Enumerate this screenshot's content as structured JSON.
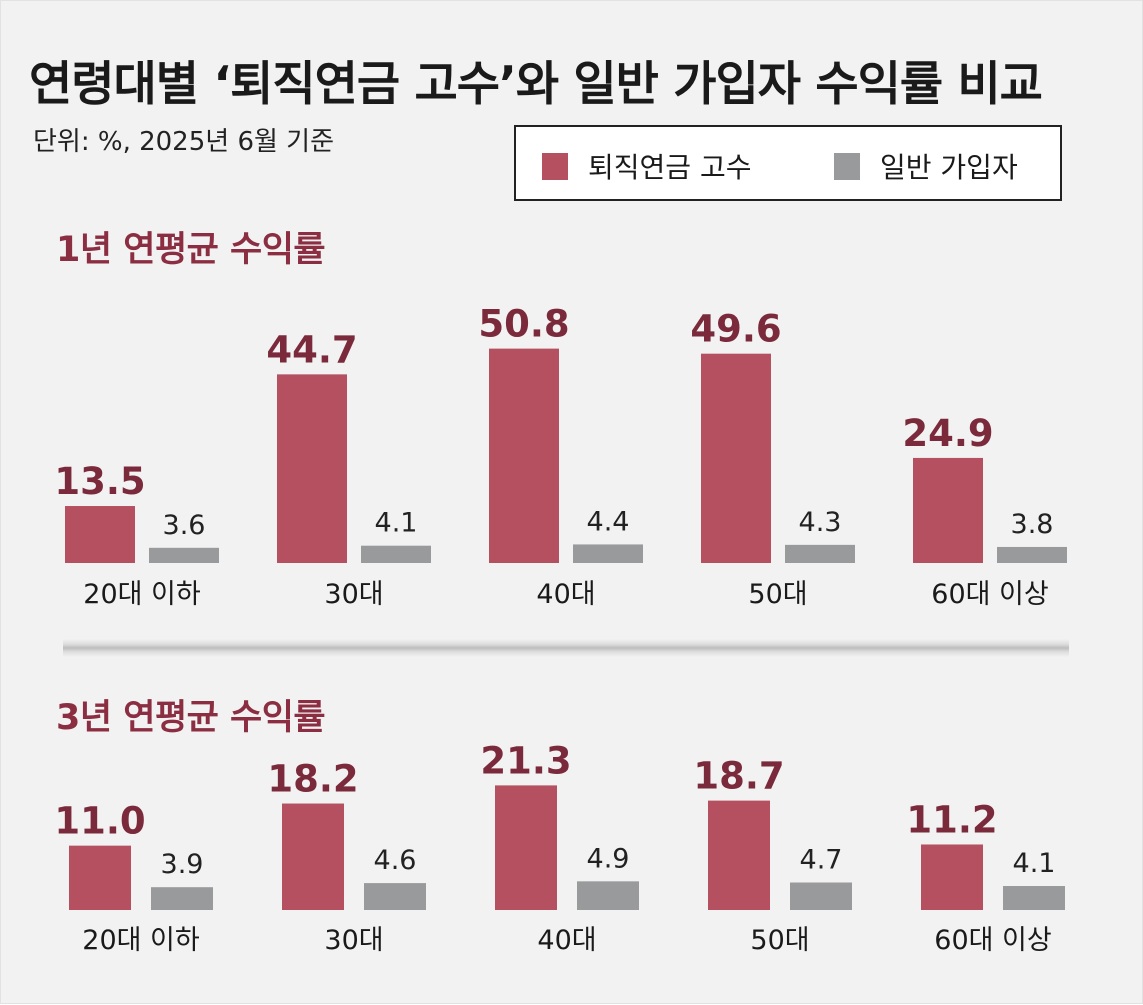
{
  "title": "연령대별 ‘퇴직연금 고수’와 일반 가입자 수익률 비교",
  "unit_note": "단위: %, 2025년 6월 기준",
  "colors": {
    "expert": "#b4505f",
    "general": "#999a9c",
    "panel_title": "#8c2e42",
    "value_label": "#7b2a3c"
  },
  "legend": [
    {
      "label": "퇴직연금 고수",
      "color": "#b4505f"
    },
    {
      "label": "일반 가입자",
      "color": "#999a9c"
    }
  ],
  "chart_data": [
    {
      "type": "bar",
      "title": "1년 연평균 수익률",
      "categories": [
        "20대 이하",
        "30대",
        "40대",
        "50대",
        "60대 이상"
      ],
      "series": [
        {
          "name": "퇴직연금 고수",
          "values": [
            13.5,
            44.7,
            50.8,
            49.6,
            24.9
          ]
        },
        {
          "name": "일반 가입자",
          "values": [
            3.6,
            4.1,
            4.4,
            4.3,
            3.8
          ]
        }
      ],
      "grid": false
    },
    {
      "type": "bar",
      "title": "3년 연평균 수익률",
      "categories": [
        "20대 이하",
        "30대",
        "40대",
        "50대",
        "60대 이상"
      ],
      "series": [
        {
          "name": "퇴직연금 고수",
          "values": [
            11.0,
            18.2,
            21.3,
            18.7,
            11.2
          ]
        },
        {
          "name": "일반 가입자",
          "values": [
            3.9,
            4.6,
            4.9,
            4.7,
            4.1
          ]
        }
      ],
      "grid": false
    }
  ]
}
